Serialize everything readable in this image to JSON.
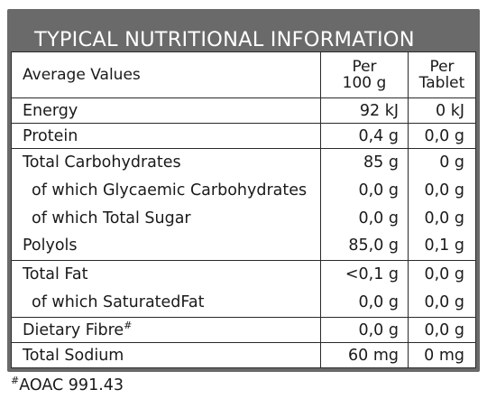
{
  "title": "TYPICAL NUTRITIONAL INFORMATION",
  "header": {
    "col1": "Average Values",
    "col2_line1": "Per",
    "col2_line2": "100 g",
    "col3_line1": "Per",
    "col3_line2": "Tablet"
  },
  "rows": {
    "energy": {
      "label": "Energy",
      "per100": "92 kJ",
      "perTablet": "0 kJ"
    },
    "protein": {
      "label": "Protein",
      "per100": "0,4 g",
      "perTablet": "0,0 g"
    },
    "carbs": {
      "label": "Total Carbohydrates",
      "per100": "85 g",
      "perTablet": "0 g"
    },
    "glycaemic": {
      "label": "of which Glycaemic Carbohydrates",
      "per100": "0,0 g",
      "perTablet": "0,0 g"
    },
    "sugar": {
      "label": "of which Total Sugar",
      "per100": "0,0 g",
      "perTablet": "0,0 g"
    },
    "polyols": {
      "label": "Polyols",
      "per100": "85,0 g",
      "perTablet": "0,1 g"
    },
    "fat": {
      "label": "Total Fat",
      "per100": "<0,1 g",
      "perTablet": "0,0 g"
    },
    "satfat": {
      "label": "of which SaturatedFat",
      "per100": "0,0 g",
      "perTablet": "0,0 g"
    },
    "fibre": {
      "label": "Dietary Fibre",
      "marker": "#",
      "per100": "0,0 g",
      "perTablet": "0,0 g"
    },
    "sodium": {
      "label": "Total Sodium",
      "per100": "60 mg",
      "perTablet": "0 mg"
    }
  },
  "footnote": {
    "marker": "#",
    "text": "AOAC 991.43"
  }
}
